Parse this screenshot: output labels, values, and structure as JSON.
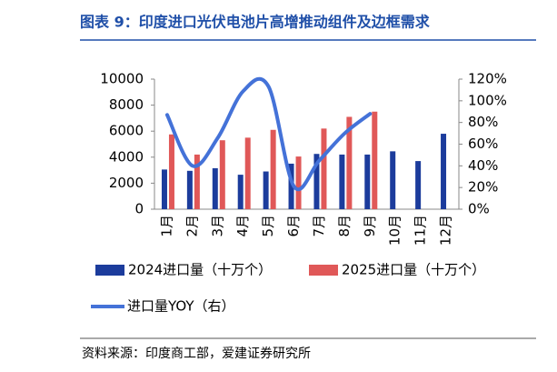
{
  "chart_data": {
    "type": "bar",
    "title": "图表 9：印度进口光伏电池片高增推动组件及边框需求",
    "source": "资料来源：印度商工部，爱建证券研究所",
    "categories": [
      "1月",
      "2月",
      "3月",
      "4月",
      "5月",
      "6月",
      "7月",
      "8月",
      "9月",
      "10月",
      "11月",
      "12月"
    ],
    "series": [
      {
        "name": "2024进口量（十万个）",
        "color": "#1c3c9c",
        "values": [
          3050,
          2950,
          3150,
          2650,
          2900,
          3500,
          4250,
          4200,
          4200,
          4450,
          3700,
          5800
        ]
      },
      {
        "name": "2025进口量（十万个）",
        "color": "#e05858",
        "values": [
          5750,
          4200,
          5300,
          5500,
          6100,
          4050,
          6200,
          7100,
          7500,
          null,
          null,
          null
        ]
      },
      {
        "name": "进口量YOY（右）",
        "color": "#4472d8",
        "type": "line",
        "axis": "y2",
        "values": [
          87,
          40,
          66,
          109,
          113,
          21,
          45,
          70,
          88,
          null,
          null,
          null
        ]
      }
    ],
    "ylim": [
      0,
      10000
    ],
    "yticks": [
      0,
      2000,
      4000,
      6000,
      8000,
      10000
    ],
    "y2lim": [
      0,
      120
    ],
    "y2ticks": [
      {
        "value": 0,
        "label": "0%"
      },
      {
        "value": 20,
        "label": "20%"
      },
      {
        "value": 40,
        "label": "40%"
      },
      {
        "value": 60,
        "label": "60%"
      },
      {
        "value": 80,
        "label": "80%"
      },
      {
        "value": 100,
        "label": "100%"
      },
      {
        "value": 120,
        "label": "120%"
      }
    ]
  }
}
